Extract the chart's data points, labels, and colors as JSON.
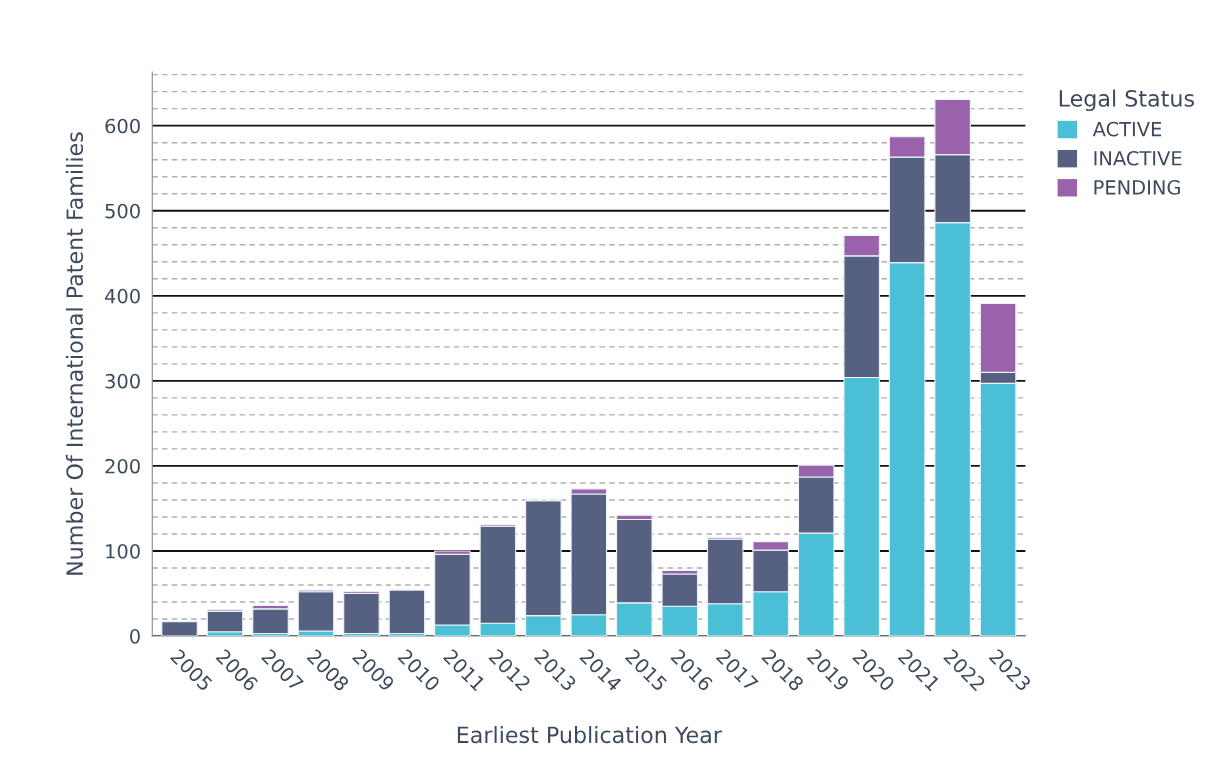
{
  "chart_data": {
    "type": "bar",
    "stacked": true,
    "xlabel": "Earliest Publication Year",
    "ylabel": "Number Of International Patent Families",
    "legend_title": "Legal Status",
    "legend": "right",
    "grid": "y",
    "categories": [
      "2005",
      "2006",
      "2007",
      "2008",
      "2009",
      "2010",
      "2011",
      "2012",
      "2013",
      "2014",
      "2015",
      "2016",
      "2017",
      "2018",
      "2019",
      "2020",
      "2021",
      "2022",
      "2023"
    ],
    "series": [
      {
        "name": "ACTIVE",
        "color": "#4bbfd6",
        "values": [
          0,
          5,
          3,
          6,
          3,
          3,
          13,
          15,
          24,
          25,
          39,
          35,
          38,
          52,
          121,
          304,
          439,
          486,
          297
        ]
      },
      {
        "name": "INACTIVE",
        "color": "#566080",
        "values": [
          17,
          24,
          29,
          46,
          47,
          51,
          83,
          114,
          135,
          142,
          98,
          38,
          76,
          49,
          66,
          143,
          124,
          80,
          13
        ]
      },
      {
        "name": "PENDING",
        "color": "#9a62aa",
        "values": [
          0,
          2,
          4,
          2,
          2,
          0,
          4,
          2,
          1,
          6,
          5,
          4,
          2,
          10,
          14,
          24,
          24,
          65,
          81
        ]
      }
    ],
    "ylim": [
      0,
      663
    ],
    "yticks": [
      0,
      {
        "value": 20,
        "label": null
      },
      {
        "value": 40,
        "label": null
      },
      {
        "value": 60,
        "label": null
      },
      {
        "value": 80,
        "label": null
      },
      100,
      {
        "value": 120,
        "label": null
      },
      {
        "value": 140,
        "label": null
      },
      {
        "value": 160,
        "label": null
      },
      {
        "value": 180,
        "label": null
      },
      200,
      {
        "value": 220,
        "label": null
      },
      {
        "value": 240,
        "label": null
      },
      {
        "value": 260,
        "label": null
      },
      {
        "value": 280,
        "label": null
      },
      300,
      {
        "value": 320,
        "label": null
      },
      {
        "value": 340,
        "label": null
      },
      {
        "value": 360,
        "label": null
      },
      {
        "value": 380,
        "label": null
      },
      400,
      {
        "value": 420,
        "label": null
      },
      {
        "value": 440,
        "label": null
      },
      {
        "value": 460,
        "label": null
      },
      {
        "value": 480,
        "label": null
      },
      500,
      {
        "value": 520,
        "label": null
      },
      {
        "value": 540,
        "label": null
      },
      {
        "value": 560,
        "label": null
      },
      {
        "value": 580,
        "label": null
      },
      600,
      {
        "value": 620,
        "label": null
      },
      {
        "value": 640,
        "label": null
      },
      {
        "value": 660,
        "label": null
      }
    ]
  }
}
